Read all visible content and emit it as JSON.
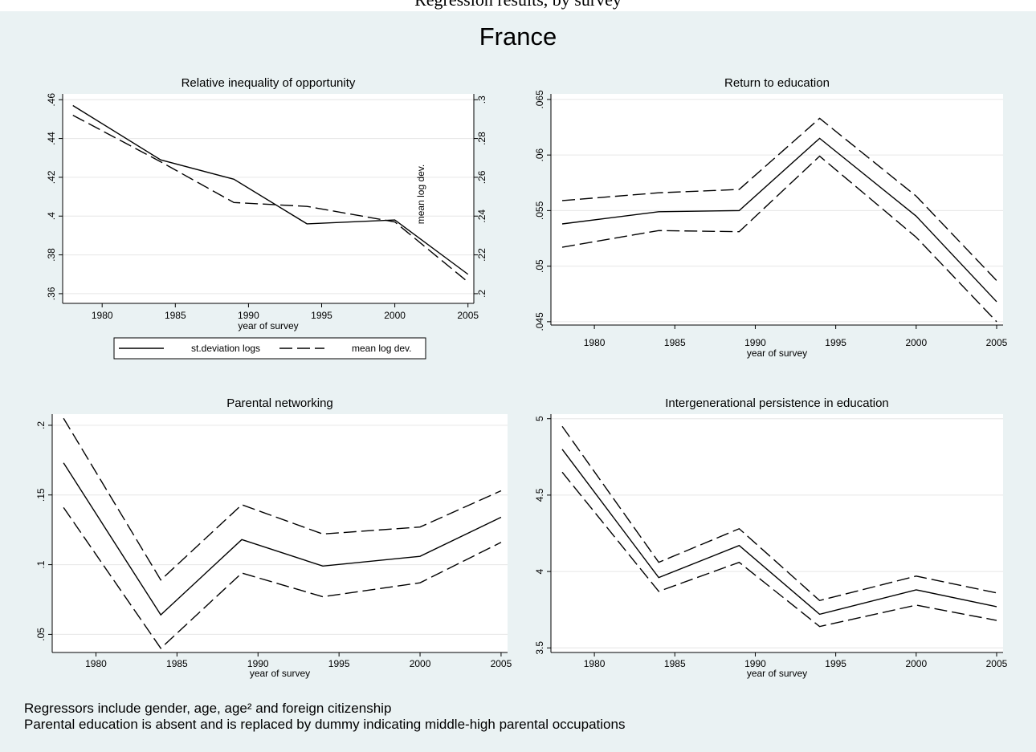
{
  "header_fragment": "Regression results, by survey",
  "title": "France",
  "notes": [
    "Regressors include gender, age, age² and foreign citizenship",
    "Parental education is absent and is replaced by dummy indicating middle-high parental occupations"
  ],
  "chart_data": [
    {
      "type": "line",
      "title": "Relative inequality of opportunity",
      "xlabel": "year of survey",
      "ylabel": "",
      "y2label": "mean log dev.",
      "x": [
        1978,
        1984,
        1989,
        1994,
        2000,
        2005
      ],
      "xticks": [
        1980,
        1985,
        1990,
        1995,
        2000,
        2005
      ],
      "xlim": [
        1977.3,
        2005.4
      ],
      "ylim": [
        0.355,
        0.463
      ],
      "yticks": [
        0.36,
        0.38,
        0.4,
        0.42,
        0.44,
        0.46
      ],
      "ytick_labels": [
        ".36",
        ".38",
        ".4",
        ".42",
        ".44",
        ".46"
      ],
      "y2lim": [
        0.195,
        0.303
      ],
      "y2ticks": [
        0.2,
        0.22,
        0.24,
        0.26,
        0.28,
        0.3
      ],
      "y2tick_labels": [
        ".2",
        ".22",
        ".24",
        ".26",
        ".28",
        ".3"
      ],
      "grid": true,
      "legend_position": "bottom",
      "series": [
        {
          "name": "st.deviation logs",
          "axis": "left",
          "style": "solid",
          "values": [
            0.457,
            0.429,
            0.419,
            0.396,
            0.398,
            0.37
          ]
        },
        {
          "name": "mean log dev.",
          "axis": "right",
          "style": "dash",
          "values": [
            0.292,
            0.268,
            0.247,
            0.245,
            0.237,
            0.206
          ]
        }
      ]
    },
    {
      "type": "line",
      "title": "Return to education",
      "xlabel": "year of survey",
      "ylabel": "",
      "x": [
        1978,
        1984,
        1989,
        1994,
        2000,
        2005
      ],
      "xticks": [
        1980,
        1985,
        1990,
        1995,
        2000,
        2005
      ],
      "xlim": [
        1977.3,
        2005.4
      ],
      "ylim": [
        0.0447,
        0.0655
      ],
      "yticks": [
        0.045,
        0.05,
        0.055,
        0.06,
        0.065
      ],
      "ytick_labels": [
        ".045",
        ".05",
        ".055",
        ".06",
        ".065"
      ],
      "grid": true,
      "series": [
        {
          "style": "solid",
          "values": [
            0.0538,
            0.0549,
            0.055,
            0.0615,
            0.0545,
            0.0468
          ]
        },
        {
          "style": "dash",
          "values": [
            0.0559,
            0.0566,
            0.0569,
            0.0633,
            0.0563,
            0.0487
          ]
        },
        {
          "style": "dash",
          "values": [
            0.0517,
            0.0532,
            0.0531,
            0.0599,
            0.0526,
            0.045
          ]
        }
      ]
    },
    {
      "type": "line",
      "title": "Parental networking",
      "xlabel": "year of survey",
      "ylabel": "",
      "x": [
        1978,
        1984,
        1989,
        1994,
        2000,
        2005
      ],
      "xticks": [
        1980,
        1985,
        1990,
        1995,
        2000,
        2005
      ],
      "xlim": [
        1977.3,
        2005.4
      ],
      "ylim": [
        0.037,
        0.208
      ],
      "yticks": [
        0.05,
        0.1,
        0.15,
        0.2
      ],
      "ytick_labels": [
        ".05",
        ".1",
        ".15",
        ".2"
      ],
      "grid": true,
      "series": [
        {
          "style": "solid",
          "values": [
            0.173,
            0.064,
            0.118,
            0.099,
            0.106,
            0.134
          ]
        },
        {
          "style": "dash",
          "values": [
            0.205,
            0.089,
            0.143,
            0.122,
            0.127,
            0.153
          ]
        },
        {
          "style": "dash",
          "values": [
            0.141,
            0.04,
            0.094,
            0.077,
            0.087,
            0.116
          ]
        }
      ]
    },
    {
      "type": "line",
      "title": "Intergenerational persistence in education",
      "xlabel": "year of survey",
      "ylabel": "",
      "x": [
        1978,
        1984,
        1989,
        1994,
        2000,
        2005
      ],
      "xticks": [
        1980,
        1985,
        1990,
        1995,
        2000,
        2005
      ],
      "xlim": [
        1977.3,
        2005.4
      ],
      "ylim": [
        3.47,
        5.03
      ],
      "yticks": [
        3.5,
        4.0,
        4.5,
        5.0
      ],
      "ytick_labels": [
        "3.5",
        "4",
        "4.5",
        "5"
      ],
      "grid": true,
      "series": [
        {
          "style": "solid",
          "values": [
            4.8,
            3.96,
            4.17,
            3.72,
            3.88,
            3.77
          ]
        },
        {
          "style": "dash",
          "values": [
            4.95,
            4.06,
            4.28,
            3.81,
            3.97,
            3.86
          ]
        },
        {
          "style": "dash",
          "values": [
            4.65,
            3.87,
            4.06,
            3.64,
            3.78,
            3.68
          ]
        }
      ]
    }
  ]
}
